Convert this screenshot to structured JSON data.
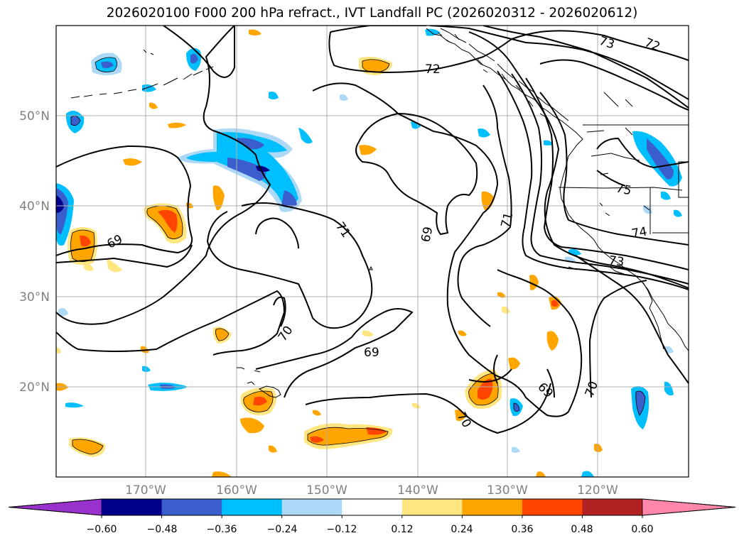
{
  "title": "2026020100 F000 200 hPa refract., IVT Landfall PC (2026020312 - 2026020612)",
  "latitude_labels": [
    "50°N",
    "40°N",
    "30°N",
    "20°N"
  ],
  "longitude_labels": [
    "170°W",
    "160°W",
    "150°W",
    "140°W",
    "130°W",
    "120°W"
  ],
  "contour_labels": [
    "73",
    "72",
    "72",
    "71",
    "71",
    "69",
    "69",
    "69",
    "69",
    "70",
    "70",
    "70",
    "75",
    "74",
    "73"
  ],
  "colorbar": {
    "tick_labels": [
      "−0.60",
      "−0.48",
      "−0.36",
      "−0.24",
      "−0.12",
      "0.12",
      "0.24",
      "0.36",
      "0.48",
      "0.60"
    ],
    "colors": [
      "#9932cc",
      "#00008b",
      "#3a5fcd",
      "#00bfff",
      "#add8f6",
      "#ffffff",
      "#ffe680",
      "#ffa500",
      "#ff4500",
      "#b22222",
      "#ff88aa"
    ]
  },
  "colors": {
    "positive_light": "#ffe680",
    "positive_mid": "#ffa500",
    "positive_strong": "#ff4500",
    "negative_light": "#add8f6",
    "negative_mid": "#00bfff",
    "negative_strong": "#3a5fcd",
    "negative_max": "#00008b",
    "gridline": "#b0b0b0",
    "axis_label": "#808080"
  }
}
